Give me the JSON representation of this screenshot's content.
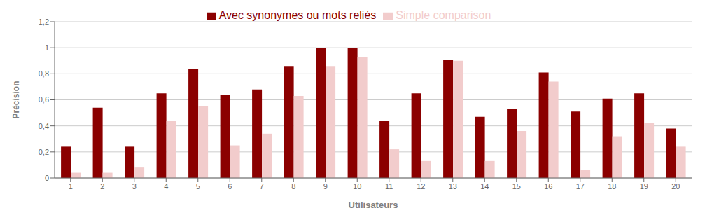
{
  "chart_data": {
    "type": "bar",
    "categories": [
      "1",
      "2",
      "3",
      "4",
      "5",
      "6",
      "7",
      "8",
      "9",
      "10",
      "11",
      "12",
      "13",
      "14",
      "15",
      "16",
      "17",
      "18",
      "19",
      "20"
    ],
    "series": [
      {
        "name": "Avec synonymes ou mots reliés",
        "color": "#8B0000",
        "values": [
          0.24,
          0.54,
          0.24,
          0.65,
          0.84,
          0.64,
          0.68,
          0.86,
          1.0,
          1.0,
          0.44,
          0.65,
          0.91,
          0.47,
          0.53,
          0.81,
          0.51,
          0.61,
          0.65,
          0.38
        ]
      },
      {
        "name": "Simple comparison",
        "color": "#F2CCCC",
        "values": [
          0.04,
          0.04,
          0.08,
          0.44,
          0.55,
          0.25,
          0.34,
          0.63,
          0.86,
          0.93,
          0.22,
          0.13,
          0.9,
          0.13,
          0.36,
          0.74,
          0.06,
          0.32,
          0.42,
          0.24
        ]
      }
    ],
    "xlabel": "Utilisateurs",
    "ylabel": "Précision",
    "ylim": [
      0,
      1.2
    ],
    "yticks": [
      0,
      {
        "value": 0.2,
        "label": "0,2"
      },
      {
        "value": 0.4,
        "label": "0,4"
      },
      {
        "value": 0.6,
        "label": "0,6"
      },
      {
        "value": 0.8,
        "label": "0,8"
      },
      1,
      {
        "value": 1.2,
        "label": "1,2"
      }
    ],
    "grid": true,
    "legend": "top"
  }
}
